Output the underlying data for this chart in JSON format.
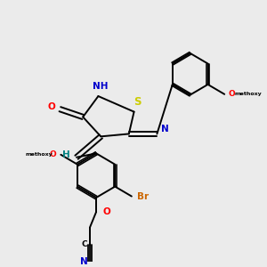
{
  "bg": "#ebebeb",
  "lw": 1.4,
  "colors": {
    "O": "#ff0000",
    "N": "#0000cc",
    "S": "#cccc00",
    "Br": "#cc6600",
    "H": "#008080",
    "C": "#000000",
    "NH": "#0000cc"
  },
  "figsize": [
    3.0,
    3.0
  ],
  "dpi": 100
}
